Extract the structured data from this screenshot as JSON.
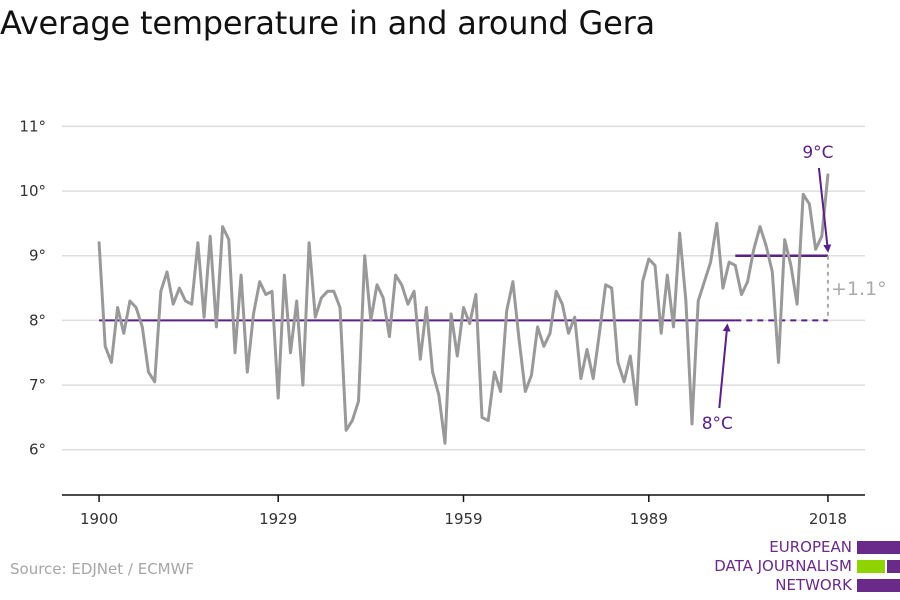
{
  "title": "Average temperature in and around Gera",
  "source": "Source: EDJNet / ECMWF",
  "logo": {
    "line1": "EUROPEAN",
    "line2": "DATA JOURNALISM",
    "line3": "NETWORK"
  },
  "colors": {
    "series": "#999999",
    "accent": "#5b1f8a",
    "grid": "#dddddd",
    "axis": "#111111",
    "logo_green": "#8fd400",
    "logo_purple": "#6a2a8a"
  },
  "chart_data": {
    "type": "line",
    "title": "Average temperature in and around Gera",
    "xlabel": "",
    "ylabel": "",
    "xlim": [
      1894,
      2024
    ],
    "ylim": [
      5.3,
      11.3
    ],
    "x_ticks": [
      1900,
      1929,
      1959,
      1989,
      2018
    ],
    "y_ticks": [
      {
        "value": 6,
        "label": "6°"
      },
      {
        "value": 7,
        "label": "7°"
      },
      {
        "value": 8,
        "label": "8°"
      },
      {
        "value": 9,
        "label": "9°"
      },
      {
        "value": 10,
        "label": "10°"
      },
      {
        "value": 11,
        "label": "11°"
      }
    ],
    "grid": true,
    "series": [
      {
        "x": [
          1900,
          1901,
          1902,
          1903,
          1904,
          1905,
          1906,
          1907,
          1908,
          1909,
          1910,
          1911,
          1912,
          1913,
          1914,
          1915,
          1916,
          1917,
          1918,
          1919,
          1920,
          1921,
          1922,
          1923,
          1924,
          1925,
          1926,
          1927,
          1928,
          1929,
          1930,
          1931,
          1932,
          1933,
          1934,
          1935,
          1936,
          1937,
          1938,
          1939,
          1940,
          1941,
          1942,
          1943,
          1944,
          1945,
          1946,
          1947,
          1948,
          1949,
          1950,
          1951,
          1952,
          1953,
          1954,
          1955,
          1956,
          1957,
          1958,
          1959,
          1960,
          1961,
          1962,
          1963,
          1964,
          1965,
          1966,
          1967,
          1968,
          1969,
          1970,
          1971,
          1972,
          1973,
          1974,
          1975,
          1976,
          1977,
          1978,
          1979,
          1980,
          1981,
          1982,
          1983,
          1984,
          1985,
          1986,
          1987,
          1988,
          1989,
          1990,
          1991,
          1992,
          1993,
          1994,
          1995,
          1996,
          1997,
          1998,
          1999,
          2000,
          2001,
          2002,
          2003,
          2004,
          2005,
          2006,
          2007,
          2008,
          2009,
          2010,
          2011,
          2012,
          2013,
          2014,
          2015,
          2016,
          2017,
          2018
        ],
        "values": [
          9.2,
          7.6,
          7.35,
          8.2,
          7.8,
          8.3,
          8.2,
          7.9,
          7.2,
          7.05,
          8.45,
          8.75,
          8.25,
          8.5,
          8.3,
          8.25,
          9.2,
          8.05,
          9.3,
          7.9,
          9.45,
          9.25,
          7.5,
          8.7,
          7.2,
          8.1,
          8.6,
          8.4,
          8.45,
          6.8,
          8.7,
          7.5,
          8.3,
          7.0,
          9.2,
          8.05,
          8.35,
          8.45,
          8.45,
          8.2,
          6.3,
          6.45,
          6.75,
          9.0,
          8.0,
          8.55,
          8.35,
          7.75,
          8.7,
          8.55,
          8.25,
          8.45,
          7.4,
          8.2,
          7.2,
          6.85,
          6.1,
          8.1,
          7.45,
          8.2,
          7.95,
          8.4,
          6.5,
          6.45,
          7.2,
          6.9,
          8.15,
          8.6,
          7.7,
          6.9,
          7.15,
          7.9,
          7.6,
          7.8,
          8.45,
          8.25,
          7.8,
          8.05,
          7.1,
          7.55,
          7.1,
          7.8,
          8.55,
          8.5,
          7.35,
          7.05,
          7.45,
          6.7,
          8.6,
          8.95,
          8.85,
          7.8,
          8.7,
          7.9,
          9.35,
          8.3,
          6.4,
          8.3,
          8.6,
          8.9,
          9.5,
          8.5,
          8.9,
          8.85,
          8.4,
          8.6,
          9.1,
          9.45,
          9.15,
          8.75,
          7.35,
          9.25,
          8.85,
          8.25,
          9.95,
          9.8,
          9.1,
          9.3,
          10.25
        ]
      }
    ],
    "annotations": {
      "baseline": {
        "value": 8.0,
        "from": 1900,
        "to": 2018,
        "dashed_from": 2003,
        "label": "8°C"
      },
      "recent": {
        "value": 9.0,
        "from": 2003,
        "to": 2018,
        "label": "9°C"
      },
      "difference_label": "+1.1°"
    }
  }
}
